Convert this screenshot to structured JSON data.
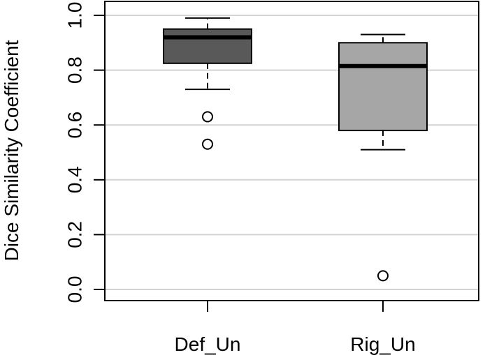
{
  "chart_data": {
    "type": "boxplot",
    "title": "",
    "xlabel": "",
    "ylabel": "Dice Similarity Coefficient",
    "ylim": [
      0.0,
      1.0
    ],
    "yticks": [
      "0.0",
      "0.2",
      "0.4",
      "0.6",
      "0.8",
      "1.0"
    ],
    "grid": "horizontal",
    "categories": [
      "Def_Un",
      "Rig_Un"
    ],
    "boxes": [
      {
        "name": "Def_Un",
        "color": "#595959",
        "whisker_low": 0.73,
        "q1": 0.825,
        "median": 0.92,
        "q3": 0.95,
        "whisker_high": 0.99,
        "outliers": [
          0.63,
          0.53
        ]
      },
      {
        "name": "Rig_Un",
        "color": "#a6a6a6",
        "whisker_low": 0.51,
        "q1": 0.58,
        "median": 0.815,
        "q3": 0.9,
        "whisker_high": 0.93,
        "outliers": [
          0.05
        ]
      }
    ]
  }
}
